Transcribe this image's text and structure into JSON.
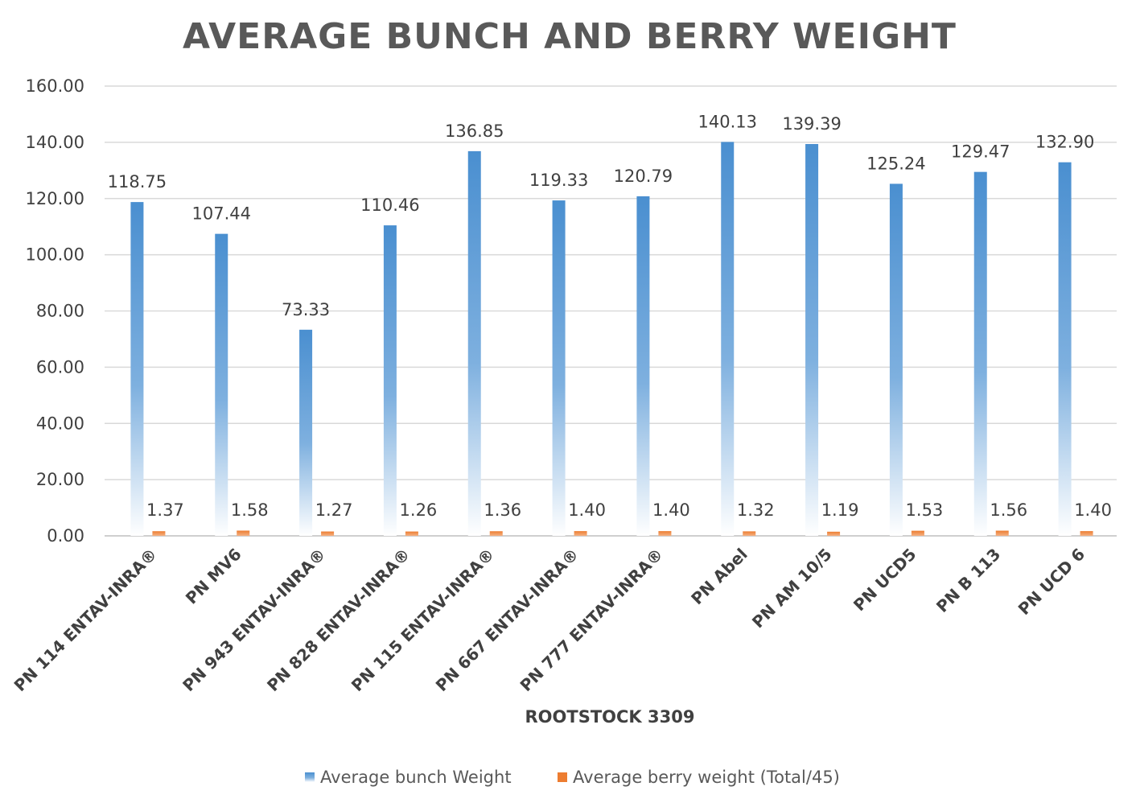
{
  "chart_data": {
    "type": "bar",
    "title": "AVERAGE BUNCH AND BERRY WEIGHT",
    "xlabel": "ROOTSTOCK 3309",
    "ylabel": "",
    "ylim": [
      0,
      160
    ],
    "yticks": [
      "0.00",
      "20.00",
      "40.00",
      "60.00",
      "80.00",
      "100.00",
      "120.00",
      "140.00",
      "160.00"
    ],
    "grid": true,
    "legend_position": "bottom",
    "categories": [
      "PN 114 ENTAV-INRA®",
      "PN MV6",
      "PN 943 ENTAV-INRA®",
      "PN 828 ENTAV-INRA®",
      "PN 115 ENTAV-INRA®",
      "PN 667 ENTAV-INRA®",
      "PN 777 ENTAV-INRA®",
      "PN Abel",
      "PN AM 10/5",
      "PN UCD5",
      "PN B 113",
      "PN UCD 6"
    ],
    "series": [
      {
        "name": "Average bunch Weight",
        "color": "#5b9bd5",
        "values": [
          118.75,
          107.44,
          73.33,
          110.46,
          136.85,
          119.33,
          120.79,
          140.13,
          139.39,
          125.24,
          129.47,
          132.9
        ],
        "labels": [
          "118.75",
          "107.44",
          "73.33",
          "110.46",
          "136.85",
          "119.33",
          "120.79",
          "140.13",
          "139.39",
          "125.24",
          "129.47",
          "132.90"
        ]
      },
      {
        "name": "Average berry weight (Total/45)",
        "color": "#ed7d31",
        "values": [
          1.37,
          1.58,
          1.27,
          1.26,
          1.36,
          1.4,
          1.4,
          1.32,
          1.19,
          1.53,
          1.56,
          1.4
        ],
        "labels": [
          "1.37",
          "1.58",
          "1.27",
          "1.26",
          "1.36",
          "1.40",
          "1.40",
          "1.32",
          "1.19",
          "1.53",
          "1.56",
          "1.40"
        ]
      }
    ]
  }
}
